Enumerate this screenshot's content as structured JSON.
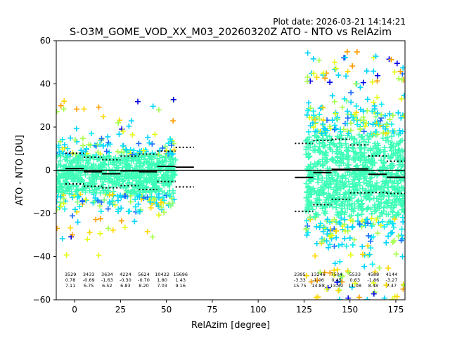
{
  "figure": {
    "plot_date": "Plot date: 2026-03-21 14:14:21"
  },
  "colors": {
    "scatter": [
      "#40ffb7",
      "#3dffba",
      "#00d4ff",
      "#10ecf0",
      "#a8ff4e",
      "#e4ff13",
      "#ffd700",
      "#1a6cff",
      "#0000e8",
      "#7dff7a",
      "#ff9e00"
    ],
    "mean_line": "#000000",
    "std_line": "#000000"
  },
  "chart_data": {
    "type": "scatter",
    "title": "S-O3M_GOME_VOD_XX_M03_20260320Z ATO - NTO vs RelAzim",
    "xlabel": "RelAzim [degree]",
    "ylabel": "ATO - NTO [DU]",
    "xlim": [
      -10,
      180
    ],
    "ylim": [
      -60,
      60
    ],
    "xticks": [
      0,
      25,
      50,
      75,
      100,
      125,
      150,
      175
    ],
    "yticks": [
      -60,
      -40,
      -20,
      0,
      20,
      40,
      60
    ],
    "zero_line": 0,
    "clusters": [
      {
        "x_range": [
          -10,
          55
        ],
        "spread_top": 18,
        "spread_bottom": -22
      },
      {
        "x_range": [
          126,
          180
        ],
        "spread_top": 40,
        "spread_bottom": -45
      }
    ],
    "bins": [
      {
        "center": 0,
        "count": "3529",
        "mean": "0.78",
        "std": "7.11"
      },
      {
        "center": 10,
        "count": "3433",
        "mean": "-0.69",
        "std": "6.75"
      },
      {
        "center": 20,
        "count": "3634",
        "mean": "-1.63",
        "std": "6.52"
      },
      {
        "center": 30,
        "count": "4224",
        "mean": "-0.30",
        "std": "6.83"
      },
      {
        "center": 40,
        "count": "5624",
        "mean": "-0.70",
        "std": "8.20"
      },
      {
        "center": 50,
        "count": "10422",
        "mean": "1.80",
        "std": "7.03"
      },
      {
        "center": 60,
        "count": "15696",
        "mean": "1.43",
        "std": "9.16"
      },
      {
        "center": 125,
        "count": "2395",
        "mean": "-3.33",
        "std": "15.75"
      },
      {
        "center": 135,
        "count": "13246",
        "mean": "-1.06",
        "std": "14.88"
      },
      {
        "center": 145,
        "count": "7504",
        "mean": "0.45",
        "std": "13.89"
      },
      {
        "center": 155,
        "count": "5533",
        "mean": "0.63",
        "std": "11.08"
      },
      {
        "center": 165,
        "count": "4588",
        "mean": "-1.86",
        "std": "8.48"
      },
      {
        "center": 175,
        "count": "4144",
        "mean": "-3.27",
        "std": "7.47"
      }
    ]
  }
}
